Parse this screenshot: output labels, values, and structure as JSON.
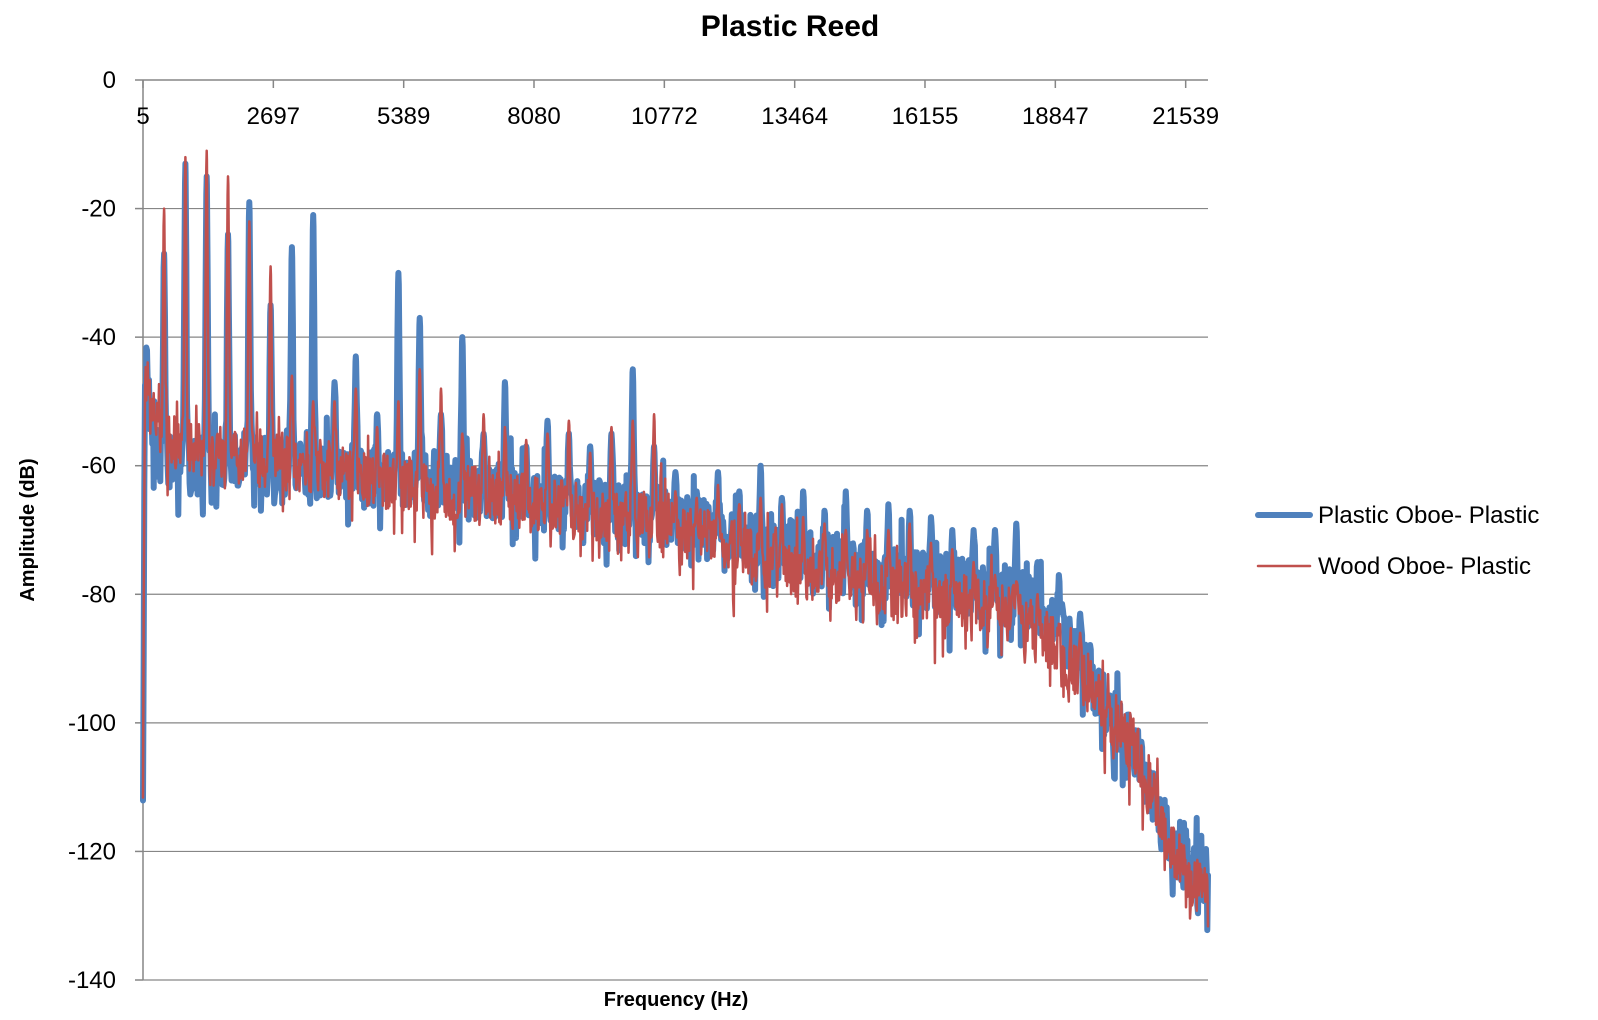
{
  "chart_data": {
    "type": "line",
    "title": "Plastic Reed",
    "xlabel": "Frequency (Hz)",
    "ylabel": "Amplitude (dB)",
    "xlim": [
      5,
      22000
    ],
    "ylim": [
      -140,
      0
    ],
    "x_ticks": [
      5,
      2697,
      5389,
      8080,
      10772,
      13464,
      16155,
      18847,
      21539
    ],
    "x_tick_labels": [
      "5",
      "2697",
      "5389",
      "8080",
      "10772",
      "13464",
      "16155",
      "18847",
      "21539"
    ],
    "y_ticks": [
      0,
      -20,
      -40,
      -60,
      -80,
      -100,
      -120,
      -140
    ],
    "y_tick_labels": [
      "0",
      "-20",
      "-40",
      "-60",
      "-80",
      "-100",
      "-120",
      "-140"
    ],
    "grid": "horizontal",
    "x_axis_position": "top",
    "legend_position": "right",
    "harmonic_fundamental_hz": 440,
    "series": [
      {
        "name": "Plastic Oboe- Plastic",
        "color": "#4f81bd",
        "line_width": 6,
        "peaks": [
          {
            "x": 440,
            "y": -27
          },
          {
            "x": 880,
            "y": -13
          },
          {
            "x": 1320,
            "y": -15
          },
          {
            "x": 1760,
            "y": -24
          },
          {
            "x": 2200,
            "y": -19
          },
          {
            "x": 2640,
            "y": -35
          },
          {
            "x": 3080,
            "y": -26
          },
          {
            "x": 3520,
            "y": -21
          },
          {
            "x": 3960,
            "y": -47
          },
          {
            "x": 4400,
            "y": -43
          },
          {
            "x": 4840,
            "y": -52
          },
          {
            "x": 5280,
            "y": -30
          },
          {
            "x": 5720,
            "y": -37
          },
          {
            "x": 6160,
            "y": -52
          },
          {
            "x": 6600,
            "y": -40
          },
          {
            "x": 7040,
            "y": -55
          },
          {
            "x": 7480,
            "y": -47
          },
          {
            "x": 7920,
            "y": -57
          },
          {
            "x": 8360,
            "y": -53
          },
          {
            "x": 8800,
            "y": -55
          },
          {
            "x": 9240,
            "y": -57
          },
          {
            "x": 9680,
            "y": -55
          },
          {
            "x": 10120,
            "y": -45
          },
          {
            "x": 10560,
            "y": -57
          },
          {
            "x": 11000,
            "y": -61
          },
          {
            "x": 11440,
            "y": -64
          },
          {
            "x": 11880,
            "y": -61
          },
          {
            "x": 12320,
            "y": -64
          },
          {
            "x": 12760,
            "y": -60
          },
          {
            "x": 13200,
            "y": -65
          },
          {
            "x": 13640,
            "y": -64
          },
          {
            "x": 14080,
            "y": -67
          },
          {
            "x": 14520,
            "y": -64
          },
          {
            "x": 14960,
            "y": -67
          },
          {
            "x": 15400,
            "y": -66
          },
          {
            "x": 15840,
            "y": -67
          },
          {
            "x": 16280,
            "y": -68
          },
          {
            "x": 16720,
            "y": -70
          },
          {
            "x": 17160,
            "y": -70
          },
          {
            "x": 17600,
            "y": -70
          },
          {
            "x": 18040,
            "y": -69
          },
          {
            "x": 18480,
            "y": -75
          },
          {
            "x": 18920,
            "y": -77
          },
          {
            "x": 19360,
            "y": -83
          }
        ],
        "envelope": [
          {
            "x": 5,
            "y": -114
          },
          {
            "x": 40,
            "y": -47
          },
          {
            "x": 400,
            "y": -60
          },
          {
            "x": 2697,
            "y": -60
          },
          {
            "x": 5389,
            "y": -62
          },
          {
            "x": 8080,
            "y": -65
          },
          {
            "x": 10772,
            "y": -68
          },
          {
            "x": 13464,
            "y": -74
          },
          {
            "x": 16155,
            "y": -78
          },
          {
            "x": 18000,
            "y": -80
          },
          {
            "x": 18847,
            "y": -84
          },
          {
            "x": 19500,
            "y": -92
          },
          {
            "x": 20500,
            "y": -104
          },
          {
            "x": 21100,
            "y": -116
          },
          {
            "x": 21539,
            "y": -122
          },
          {
            "x": 21800,
            "y": -124
          }
        ]
      },
      {
        "name": "Wood Oboe- Plastic",
        "color": "#c0504d",
        "line_width": 2.5,
        "peaks": [
          {
            "x": 440,
            "y": -20
          },
          {
            "x": 880,
            "y": -12
          },
          {
            "x": 1320,
            "y": -11
          },
          {
            "x": 1760,
            "y": -15
          },
          {
            "x": 2200,
            "y": -22
          },
          {
            "x": 2640,
            "y": -29
          },
          {
            "x": 3080,
            "y": -46
          },
          {
            "x": 3520,
            "y": -50
          },
          {
            "x": 3960,
            "y": -50
          },
          {
            "x": 4400,
            "y": -48
          },
          {
            "x": 4840,
            "y": -54
          },
          {
            "x": 5280,
            "y": -50
          },
          {
            "x": 5720,
            "y": -45
          },
          {
            "x": 6160,
            "y": -48
          },
          {
            "x": 6600,
            "y": -55
          },
          {
            "x": 7040,
            "y": -52
          },
          {
            "x": 7480,
            "y": -54
          },
          {
            "x": 7920,
            "y": -56
          },
          {
            "x": 8360,
            "y": -55
          },
          {
            "x": 8800,
            "y": -53
          },
          {
            "x": 9240,
            "y": -58
          },
          {
            "x": 9680,
            "y": -54
          },
          {
            "x": 10120,
            "y": -53
          },
          {
            "x": 10560,
            "y": -52
          },
          {
            "x": 11000,
            "y": -64
          },
          {
            "x": 11440,
            "y": -65
          },
          {
            "x": 11880,
            "y": -63
          },
          {
            "x": 12320,
            "y": -66
          },
          {
            "x": 12760,
            "y": -65
          },
          {
            "x": 13200,
            "y": -66
          },
          {
            "x": 13640,
            "y": -68
          },
          {
            "x": 14080,
            "y": -69
          },
          {
            "x": 14520,
            "y": -70
          },
          {
            "x": 14960,
            "y": -70
          },
          {
            "x": 15400,
            "y": -70
          },
          {
            "x": 15840,
            "y": -69
          },
          {
            "x": 16280,
            "y": -72
          },
          {
            "x": 16720,
            "y": -73
          },
          {
            "x": 17160,
            "y": -75
          },
          {
            "x": 17600,
            "y": -77
          },
          {
            "x": 18040,
            "y": -78
          },
          {
            "x": 18480,
            "y": -80
          },
          {
            "x": 18920,
            "y": -85
          },
          {
            "x": 19360,
            "y": -86
          }
        ],
        "envelope": [
          {
            "x": 5,
            "y": -112
          },
          {
            "x": 40,
            "y": -46
          },
          {
            "x": 400,
            "y": -57
          },
          {
            "x": 2697,
            "y": -59
          },
          {
            "x": 5389,
            "y": -63
          },
          {
            "x": 8080,
            "y": -66
          },
          {
            "x": 10772,
            "y": -69
          },
          {
            "x": 13464,
            "y": -76
          },
          {
            "x": 16155,
            "y": -80
          },
          {
            "x": 18000,
            "y": -83
          },
          {
            "x": 18847,
            "y": -88
          },
          {
            "x": 19500,
            "y": -94
          },
          {
            "x": 20500,
            "y": -104
          },
          {
            "x": 21100,
            "y": -117
          },
          {
            "x": 21539,
            "y": -123
          },
          {
            "x": 21800,
            "y": -125
          }
        ]
      }
    ]
  }
}
